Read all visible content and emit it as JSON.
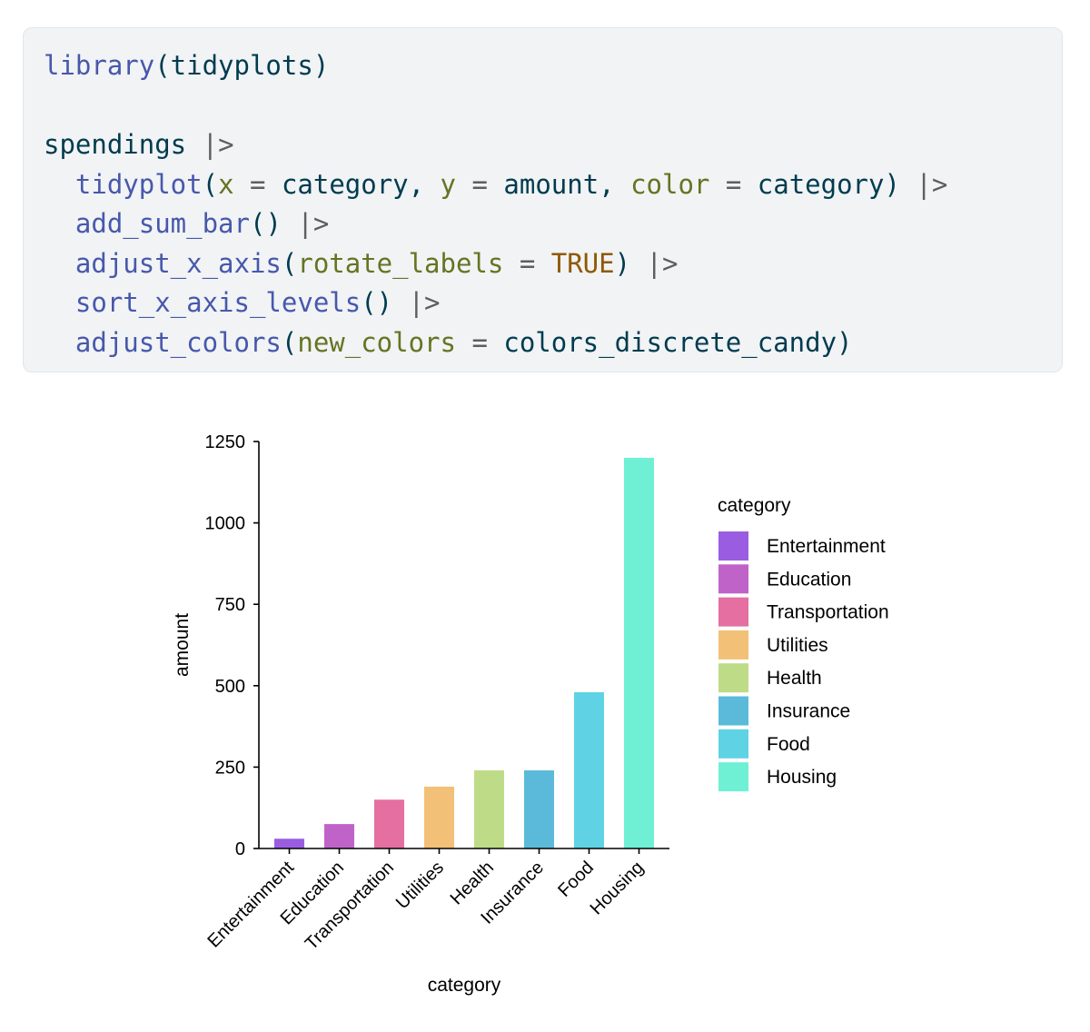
{
  "code": {
    "lines": [
      [
        {
          "t": "library",
          "c": "fn"
        },
        {
          "t": "(tidyplots)",
          "c": "plain"
        }
      ],
      [],
      [
        {
          "t": "spendings ",
          "c": "plain"
        },
        {
          "t": "|>",
          "c": "op"
        }
      ],
      [
        {
          "t": "  ",
          "c": "plain"
        },
        {
          "t": "tidyplot",
          "c": "fn"
        },
        {
          "t": "(",
          "c": "plain"
        },
        {
          "t": "x",
          "c": "arg"
        },
        {
          "t": " = ",
          "c": "op"
        },
        {
          "t": "category, ",
          "c": "plain"
        },
        {
          "t": "y",
          "c": "arg"
        },
        {
          "t": " = ",
          "c": "op"
        },
        {
          "t": "amount, ",
          "c": "plain"
        },
        {
          "t": "color",
          "c": "arg"
        },
        {
          "t": " = ",
          "c": "op"
        },
        {
          "t": "category) ",
          "c": "plain"
        },
        {
          "t": "|>",
          "c": "op"
        }
      ],
      [
        {
          "t": "  ",
          "c": "plain"
        },
        {
          "t": "add_sum_bar",
          "c": "fn"
        },
        {
          "t": "() ",
          "c": "plain"
        },
        {
          "t": "|>",
          "c": "op"
        }
      ],
      [
        {
          "t": "  ",
          "c": "plain"
        },
        {
          "t": "adjust_x_axis",
          "c": "fn"
        },
        {
          "t": "(",
          "c": "plain"
        },
        {
          "t": "rotate_labels",
          "c": "arg"
        },
        {
          "t": " = ",
          "c": "op"
        },
        {
          "t": "TRUE",
          "c": "const"
        },
        {
          "t": ") ",
          "c": "plain"
        },
        {
          "t": "|>",
          "c": "op"
        }
      ],
      [
        {
          "t": "  ",
          "c": "plain"
        },
        {
          "t": "sort_x_axis_levels",
          "c": "fn"
        },
        {
          "t": "() ",
          "c": "plain"
        },
        {
          "t": "|>",
          "c": "op"
        }
      ],
      [
        {
          "t": "  ",
          "c": "plain"
        },
        {
          "t": "adjust_colors",
          "c": "fn"
        },
        {
          "t": "(",
          "c": "plain"
        },
        {
          "t": "new_colors",
          "c": "arg"
        },
        {
          "t": " = ",
          "c": "op"
        },
        {
          "t": "colors_discrete_candy)",
          "c": "plain"
        }
      ]
    ]
  },
  "chart_data": {
    "type": "bar",
    "categories": [
      "Entertainment",
      "Education",
      "Transportation",
      "Utilities",
      "Health",
      "Insurance",
      "Food",
      "Housing"
    ],
    "values": [
      30,
      75,
      150,
      190,
      240,
      240,
      480,
      1200
    ],
    "colors": [
      "#9a5de2",
      "#c063c9",
      "#e46fa0",
      "#f2c077",
      "#bedc88",
      "#5bbad9",
      "#5fd3e3",
      "#6ff0d4"
    ],
    "title": "",
    "xlabel": "category",
    "ylabel": "amount",
    "ylim": [
      0,
      1250
    ],
    "yticks": [
      0,
      250,
      500,
      750,
      1000,
      1250
    ],
    "grid": false,
    "legend": {
      "title": "category",
      "position": "right"
    }
  }
}
